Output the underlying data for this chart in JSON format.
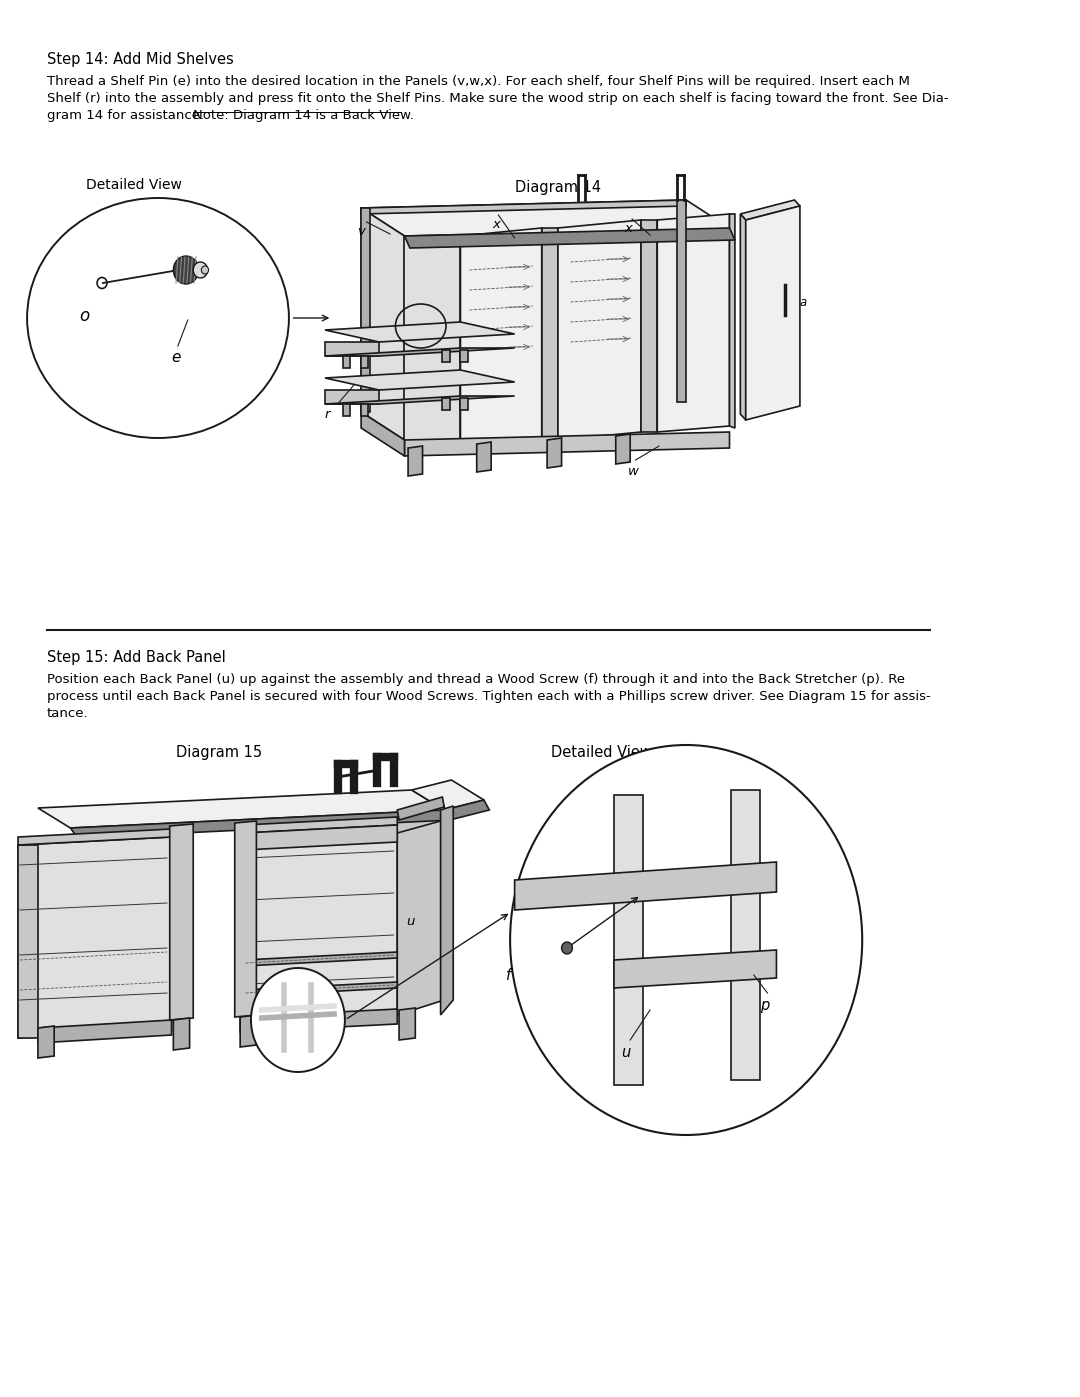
{
  "bg_color": "#ffffff",
  "text_color": "#000000",
  "page_width": 10.8,
  "page_height": 13.97,
  "step14_title": "Step 14: Add Mid Shelves",
  "step14_body1": "Thread a Shelf Pin (e) into the desired location in the Panels (v,w,x). For each shelf, four Shelf Pins will be required. Insert each M",
  "step14_body2": "Shelf (r) into the assembly and press fit onto the Shelf Pins. Make sure the wood strip on each shelf is facing toward the front. See Dia-",
  "step14_body3": "gram 14 for assistance.",
  "step14_note": "Note: Diagram 14 is a Back View.",
  "step14_diag_label": "Diagram 14",
  "step14_detail_label": "Detailed View",
  "step15_title": "Step 15: Add Back Panel",
  "step15_body1": "Position each Back Panel (u) up against the assembly and thread a Wood Screw (f) through it and into the Back Stretcher (p). Re",
  "step15_body2": "process until each Back Panel is secured with four Wood Screws. Tighten each with a Phillips screw driver. See Diagram 15 for assis-",
  "step15_body3": "tance.",
  "step15_diag_label": "Diagram 15",
  "step15_detail_label": "Detailed View",
  "line_color": "#1a1a1a",
  "fill_light": "#f0f0f0",
  "fill_mid": "#e0e0e0",
  "fill_dark": "#c8c8c8",
  "fill_darker": "#b0b0b0"
}
